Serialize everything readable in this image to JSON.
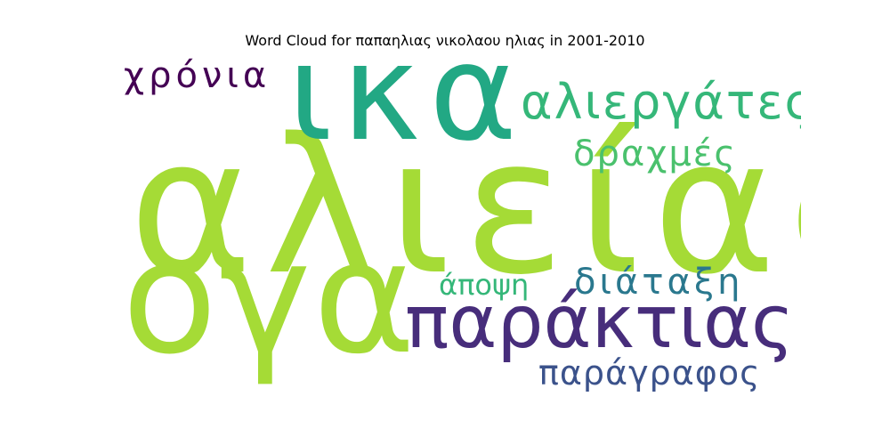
{
  "title": "Word Cloud for παπαηλιας νικολαου ηλιας in 2001-2010",
  "words": {
    "alieias": {
      "text": "αλιείας",
      "color": "#a5db36"
    },
    "oga": {
      "text": "ογα",
      "color": "#a5db36"
    },
    "ika": {
      "text": "ικα",
      "color": "#22a884"
    },
    "parakteias": {
      "text": "παράκτιας",
      "color": "#472d7b"
    },
    "alieryates": {
      "text": "αλιεργάτες",
      "color": "#35b779"
    },
    "xronia": {
      "text": "χρόνια",
      "color": "#440154"
    },
    "draxmes": {
      "text": "δραχμές",
      "color": "#4ac16d"
    },
    "diataxi": {
      "text": "διάταξη",
      "color": "#2a788e"
    },
    "apopsi": {
      "text": "άποψη",
      "color": "#35b779"
    },
    "paragrafos": {
      "text": "παράγραφος",
      "color": "#3b528b"
    }
  }
}
